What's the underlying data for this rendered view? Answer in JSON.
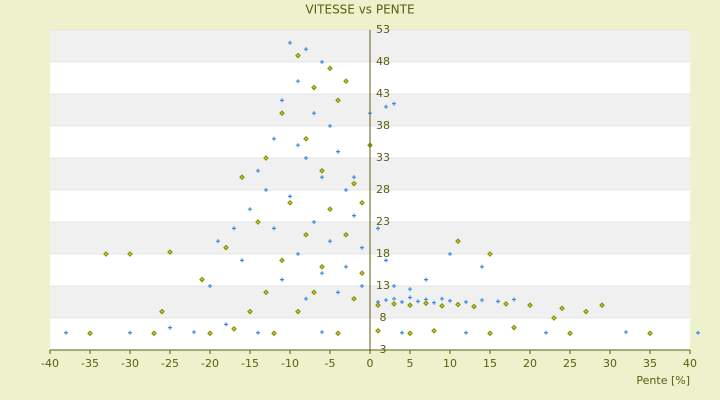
{
  "chart_data": {
    "type": "scatter",
    "title": "VITESSE vs PENTE",
    "x_label": "Pente [%]",
    "xlim": [
      -40,
      40
    ],
    "xticks": [
      -40,
      -35,
      -30,
      -25,
      -20,
      -15,
      -10,
      -5,
      0,
      5,
      10,
      15,
      20,
      25,
      30,
      35,
      40
    ],
    "ylim": [
      3,
      53
    ],
    "yticks": [
      3,
      8,
      13,
      18,
      23,
      28,
      33,
      38,
      43,
      48,
      53
    ],
    "grid": true,
    "series": [
      {
        "color": "#3a8ee6",
        "marker": "cross",
        "x": [
          -10,
          -8,
          -6,
          -9,
          -11,
          -7,
          -5,
          -12,
          -4,
          -8,
          -14,
          -6,
          -3,
          -10,
          -15,
          -2,
          -7,
          -12,
          -19,
          -5,
          -1,
          -9,
          -16,
          -3,
          -6,
          -11,
          -20,
          -1,
          -4,
          -8,
          1,
          2,
          3,
          4,
          5,
          6,
          7,
          8,
          9,
          10,
          12,
          14,
          16,
          18,
          3,
          5,
          7,
          2,
          1,
          0,
          2,
          3,
          -38,
          -30,
          -22,
          -14,
          -6,
          4,
          12,
          22,
          32,
          41,
          -25,
          -18,
          10,
          14,
          -17,
          -13,
          -9,
          -2
        ],
        "y": [
          51,
          50,
          48,
          45,
          42,
          40,
          38,
          36,
          34,
          33,
          31,
          30,
          28,
          27,
          25,
          24,
          23,
          22,
          20,
          20,
          19,
          18,
          17,
          16,
          15,
          14,
          13,
          13,
          12,
          11,
          10.5,
          10.8,
          11,
          10.5,
          11.2,
          10.6,
          10.9,
          10.4,
          11,
          10.7,
          10.5,
          10.8,
          10.6,
          10.9,
          13,
          12.5,
          14,
          17,
          22,
          40,
          41,
          41.5,
          5.7,
          5.7,
          5.8,
          5.7,
          5.8,
          5.7,
          5.7,
          5.7,
          5.8,
          5.7,
          6.5,
          7,
          18,
          16,
          22,
          28,
          35,
          30
        ]
      },
      {
        "color": "#8c8c00",
        "marker": "diamond",
        "x": [
          -9,
          -5,
          -7,
          -11,
          -4,
          -8,
          -13,
          -6,
          -2,
          -16,
          -10,
          -5,
          -1,
          -14,
          -8,
          -3,
          -18,
          -11,
          -6,
          -1,
          -21,
          -13,
          -7,
          -2,
          -26,
          -15,
          -9,
          1,
          3,
          5,
          7,
          9,
          11,
          13,
          17,
          20,
          24,
          29,
          -35,
          -27,
          -20,
          -12,
          -4,
          5,
          15,
          25,
          35,
          -33,
          -30,
          -25,
          11,
          15,
          0,
          -3,
          1,
          8,
          18,
          -17,
          23,
          27
        ],
        "y": [
          49,
          47,
          44,
          40,
          42,
          36,
          33,
          31,
          29,
          30,
          26,
          25,
          26,
          23,
          21,
          21,
          19,
          17,
          16,
          15,
          14,
          12,
          12,
          11,
          9,
          9,
          9,
          10,
          10.2,
          10,
          10.3,
          9.9,
          10.1,
          9.8,
          10.2,
          10,
          9.5,
          10,
          5.6,
          5.6,
          5.6,
          5.6,
          5.6,
          5.6,
          5.6,
          5.6,
          5.6,
          18,
          18,
          18.3,
          20,
          18,
          35,
          45,
          6,
          6,
          6.5,
          6.3,
          8,
          9
        ]
      }
    ]
  }
}
